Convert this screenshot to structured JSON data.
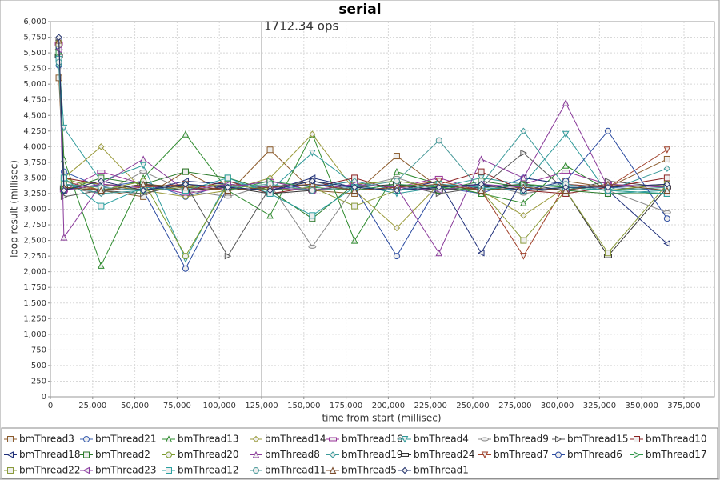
{
  "chart_data": {
    "type": "line",
    "title": "serial",
    "x_label": "time from start (millisec)",
    "y_label": "loop result (millisec)",
    "annotation": {
      "text": "1712.34 ops",
      "x": 125000
    },
    "xlim": [
      0,
      393000
    ],
    "ylim": [
      0,
      6000
    ],
    "grid": true,
    "xticks": [
      0,
      {
        "value": 25000,
        "label": "25,000"
      },
      {
        "value": 50000,
        "label": "50,000"
      },
      {
        "value": 75000,
        "label": "75,000"
      },
      {
        "value": 100000,
        "label": "100,000"
      },
      {
        "value": 125000,
        "label": "125,000"
      },
      {
        "value": 150000,
        "label": "150,000"
      },
      {
        "value": 175000,
        "label": "175,000"
      },
      {
        "value": 200000,
        "label": "200,000"
      },
      {
        "value": 225000,
        "label": "225,000"
      },
      {
        "value": 250000,
        "label": "250,000"
      },
      {
        "value": 275000,
        "label": "275,000"
      },
      {
        "value": 300000,
        "label": "300,000"
      },
      {
        "value": 325000,
        "label": "325,000"
      },
      {
        "value": 350000,
        "label": "350,000"
      },
      {
        "value": 375000,
        "label": "375,000"
      }
    ],
    "yticks": [
      0,
      250,
      500,
      750,
      {
        "value": 1000,
        "label": "1,000"
      },
      {
        "value": 1250,
        "label": "1,250"
      },
      {
        "value": 1500,
        "label": "1,500"
      },
      {
        "value": 1750,
        "label": "1,750"
      },
      {
        "value": 2000,
        "label": "2,000"
      },
      {
        "value": 2250,
        "label": "2,250"
      },
      {
        "value": 2500,
        "label": "2,500"
      },
      {
        "value": 2750,
        "label": "2,750"
      },
      {
        "value": 3000,
        "label": "3,000"
      },
      {
        "value": 3250,
        "label": "3,250"
      },
      {
        "value": 3500,
        "label": "3,500"
      },
      {
        "value": 3750,
        "label": "3,750"
      },
      {
        "value": 4000,
        "label": "4,000"
      },
      {
        "value": 4250,
        "label": "4,250"
      },
      {
        "value": 4500,
        "label": "4,500"
      },
      {
        "value": 4750,
        "label": "4,750"
      },
      {
        "value": 5000,
        "label": "5,000"
      },
      {
        "value": 5250,
        "label": "5,250"
      },
      {
        "value": 5500,
        "label": "5,500"
      },
      {
        "value": 5750,
        "label": "5,750"
      },
      {
        "value": 6000,
        "label": "6,000"
      }
    ],
    "x": [
      5000,
      8000,
      30000,
      55000,
      80000,
      105000,
      130000,
      155000,
      180000,
      205000,
      230000,
      255000,
      280000,
      305000,
      330000,
      365000
    ],
    "series": [
      {
        "name": "bmThread3",
        "color": "#8b5a2b",
        "marker": "square",
        "values": [
          5100,
          3400,
          3300,
          3200,
          3600,
          3250,
          3950,
          3300,
          3250,
          3850,
          3350,
          3400,
          3300,
          3450,
          3350,
          3800
        ]
      },
      {
        "name": "bmThread21",
        "color": "#3a5fb0",
        "marker": "circle",
        "values": [
          5300,
          3600,
          3350,
          3450,
          3200,
          3400,
          3300,
          3350,
          3450,
          3300,
          3350,
          3250,
          3500,
          3400,
          3350,
          3300
        ]
      },
      {
        "name": "bmThread13",
        "color": "#2e8b2e",
        "marker": "triangle-up",
        "values": [
          5600,
          3800,
          2100,
          3500,
          4200,
          3300,
          2900,
          4200,
          2500,
          3600,
          3400,
          3250,
          3100,
          3700,
          3300,
          3250
        ]
      },
      {
        "name": "bmThread14",
        "color": "#9a9a3a",
        "marker": "diamond",
        "values": [
          5500,
          3500,
          4000,
          3300,
          3200,
          3300,
          3500,
          4200,
          3300,
          2700,
          3400,
          3300,
          2900,
          3350,
          3300,
          3400
        ]
      },
      {
        "name": "bmThread16",
        "color": "#993399",
        "marker": "rect",
        "values": [
          5650,
          3300,
          3600,
          3400,
          3250,
          3350,
          3450,
          3300,
          3400,
          3350,
          3500,
          3300,
          3400,
          3600,
          3400,
          3350
        ]
      },
      {
        "name": "bmThread4",
        "color": "#2f9a9a",
        "marker": "triangle-down",
        "values": [
          5400,
          4300,
          3450,
          3700,
          2200,
          3450,
          3300,
          3900,
          3400,
          3250,
          3350,
          3500,
          3400,
          4200,
          3250,
          3300
        ]
      },
      {
        "name": "bmThread9",
        "color": "#888888",
        "marker": "ellipse",
        "values": [
          5550,
          3350,
          3250,
          3600,
          3300,
          3200,
          3400,
          2400,
          3350,
          3500,
          3300,
          3400,
          3250,
          3350,
          3300,
          2950
        ]
      },
      {
        "name": "bmThread15",
        "color": "#555555",
        "marker": "triangle-right",
        "values": [
          5700,
          3200,
          3300,
          3250,
          3400,
          2250,
          3350,
          3450,
          3300,
          3400,
          3250,
          3350,
          3900,
          3300,
          3450,
          3350
        ]
      },
      {
        "name": "bmThread10",
        "color": "#8b2222",
        "marker": "square",
        "values": [
          5450,
          3500,
          3400,
          3350,
          3300,
          3450,
          3250,
          3350,
          3500,
          3300,
          3400,
          3600,
          3300,
          3250,
          3350,
          3500
        ]
      },
      {
        "name": "bmThread18",
        "color": "#1f2f7a",
        "marker": "triangle-left",
        "values": [
          5700,
          3400,
          3350,
          3300,
          3450,
          3400,
          3300,
          3500,
          3350,
          3300,
          3450,
          2300,
          3500,
          3400,
          3300,
          2450
        ]
      },
      {
        "name": "bmThread2",
        "color": "#2a7a2a",
        "marker": "square",
        "values": [
          5600,
          3300,
          3500,
          3400,
          3600,
          3500,
          3300,
          2850,
          3400,
          3350,
          3300,
          3450,
          3350,
          3300,
          3250,
          3250
        ]
      },
      {
        "name": "bmThread20",
        "color": "#7a9a2a",
        "marker": "circle",
        "values": [
          5500,
          3500,
          3300,
          3450,
          2250,
          3400,
          3350,
          3300,
          3400,
          3450,
          3350,
          3300,
          3400,
          3350,
          3300,
          3400
        ]
      },
      {
        "name": "bmThread8",
        "color": "#8a3a9a",
        "marker": "triangle-up",
        "values": [
          5650,
          2550,
          3400,
          3800,
          3300,
          3350,
          3450,
          3300,
          3400,
          3350,
          2300,
          3800,
          3500,
          4700,
          3350,
          3400
        ]
      },
      {
        "name": "bmThread19",
        "color": "#3a9a9a",
        "marker": "diamond",
        "values": [
          5300,
          3400,
          3250,
          3300,
          3350,
          3400,
          3300,
          3350,
          3450,
          3300,
          3350,
          3400,
          4250,
          3350,
          3300,
          3650
        ]
      },
      {
        "name": "bmThread24",
        "color": "#333333",
        "marker": "rect",
        "values": [
          5450,
          3350,
          3300,
          3400,
          3300,
          3350,
          3250,
          3300,
          3350,
          3400,
          3300,
          3350,
          3400,
          3300,
          2250,
          3350
        ]
      },
      {
        "name": "bmThread7",
        "color": "#a0402a",
        "marker": "triangle-down",
        "values": [
          5550,
          3450,
          3300,
          3350,
          3400,
          3300,
          3350,
          3400,
          3300,
          3350,
          3450,
          3300,
          2250,
          3400,
          3350,
          3950
        ]
      },
      {
        "name": "bmThread6",
        "color": "#2a4aa0",
        "marker": "circle",
        "values": [
          5600,
          3300,
          3400,
          3300,
          2050,
          3350,
          3300,
          3400,
          3350,
          2250,
          3400,
          3350,
          3300,
          3450,
          4250,
          2850
        ]
      },
      {
        "name": "bmThread17",
        "color": "#2f9a4a",
        "marker": "triangle-right",
        "values": [
          5500,
          3350,
          3300,
          3400,
          3350,
          3300,
          3450,
          3350,
          3300,
          3400,
          3350,
          3300,
          3400,
          3350,
          3300,
          3350
        ]
      },
      {
        "name": "bmThread22",
        "color": "#8a9a3a",
        "marker": "square",
        "values": [
          5650,
          3450,
          3400,
          3300,
          3350,
          3400,
          3300,
          3350,
          3050,
          3300,
          3400,
          3300,
          2500,
          3300,
          2300,
          3400
        ]
      },
      {
        "name": "bmThread23",
        "color": "#8a3aa0",
        "marker": "triangle-left",
        "values": [
          5550,
          3300,
          3400,
          3350,
          3300,
          3400,
          3350,
          3300,
          3400,
          3350,
          3300,
          3400,
          3350,
          3300,
          3400,
          3350
        ]
      },
      {
        "name": "bmThread12",
        "color": "#2aa0a0",
        "marker": "square",
        "values": [
          5400,
          3500,
          3050,
          3350,
          3300,
          3500,
          3250,
          2900,
          3350,
          3300,
          3400,
          3350,
          3300,
          3350,
          3300,
          3250
        ]
      },
      {
        "name": "bmThread11",
        "color": "#4a9a9a",
        "marker": "circle",
        "values": [
          5350,
          3400,
          3350,
          3300,
          3400,
          3350,
          3400,
          3300,
          3350,
          3450,
          4100,
          3300,
          3350,
          3400,
          3300,
          3350
        ]
      },
      {
        "name": "bmThread5",
        "color": "#7a4a2a",
        "marker": "triangle-up",
        "values": [
          5700,
          3350,
          3300,
          3400,
          3350,
          3300,
          3350,
          3400,
          3300,
          3350,
          3400,
          3300,
          3350,
          3300,
          3400,
          3300
        ]
      },
      {
        "name": "bmThread1",
        "color": "#1f2f6a",
        "marker": "diamond",
        "values": [
          5750,
          3300,
          3450,
          3300,
          3400,
          3350,
          3300,
          3450,
          3350,
          3300,
          3350,
          3400,
          3300,
          3350,
          3350,
          3400
        ]
      }
    ]
  }
}
